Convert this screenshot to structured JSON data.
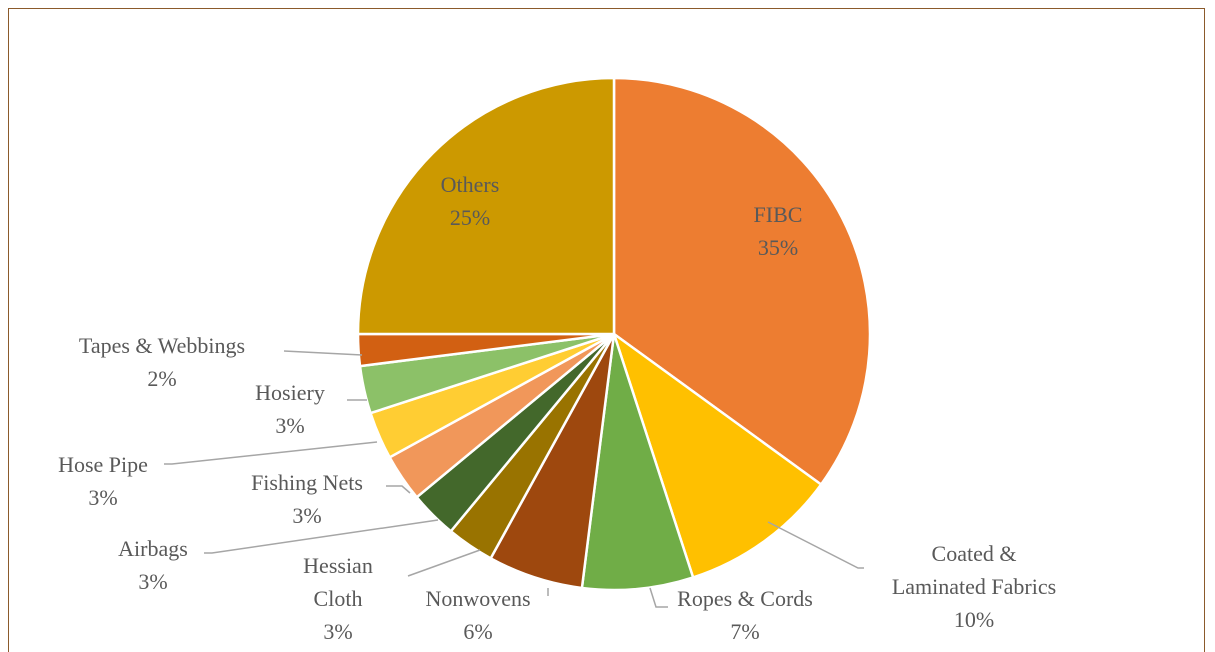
{
  "chart_data": {
    "type": "pie",
    "categories": [
      "FIBC",
      "Coated &\nLaminated Fabrics",
      "Ropes & Cords",
      "Nonwovens",
      "Hessian\nCloth",
      "Airbags",
      "Fishing Nets",
      "Hose Pipe",
      "Hosiery",
      "Tapes & Webbings",
      "Others"
    ],
    "values": [
      35,
      10,
      7,
      6,
      3,
      3,
      3,
      3,
      3,
      2,
      25
    ],
    "value_labels": [
      "35%",
      "10%",
      "7%",
      "6%",
      "3%",
      "3%",
      "3%",
      "3%",
      "3%",
      "2%",
      "25%"
    ],
    "colors": [
      "#ED7D31",
      "#FFC000",
      "#70AD47",
      "#9E480E",
      "#997300",
      "#43682B",
      "#F1975A",
      "#FFCD33",
      "#8CC168",
      "#D26012",
      "#CC9900"
    ]
  }
}
